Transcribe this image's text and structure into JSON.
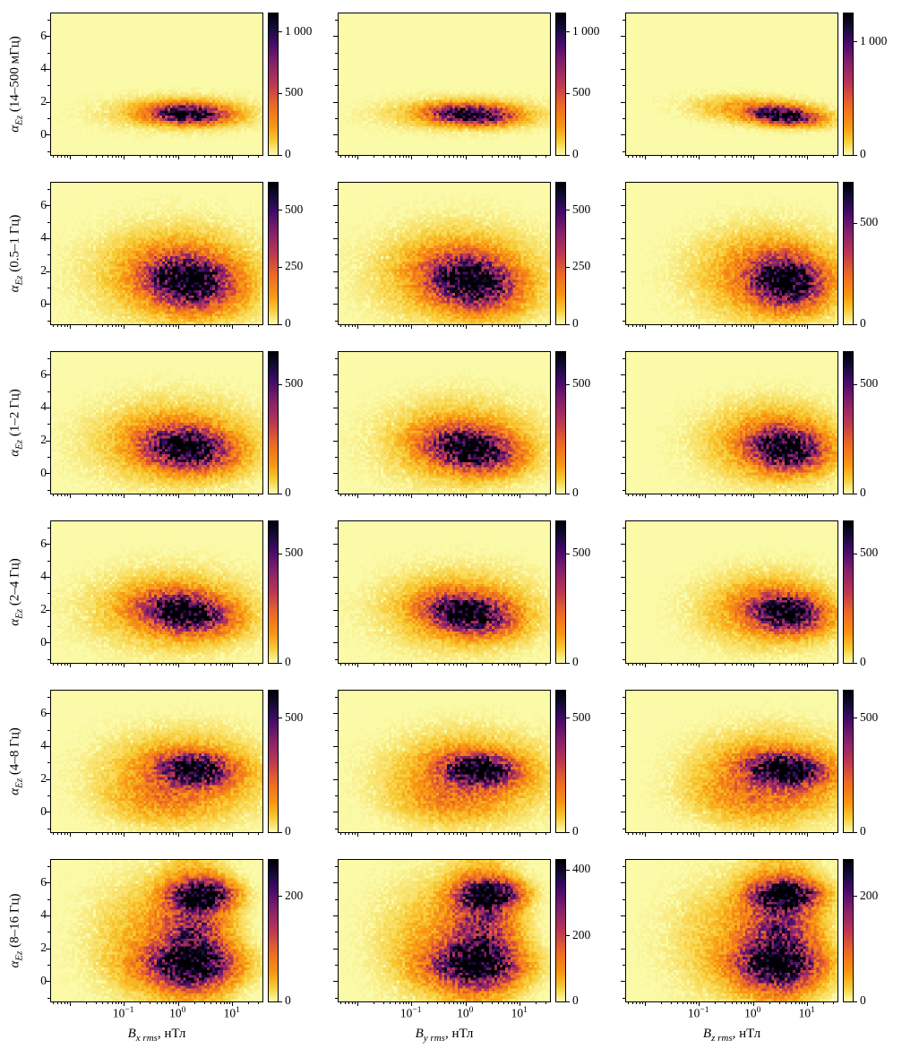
{
  "chart_data": {
    "type": "heatmap",
    "title": "",
    "description": "6x3 grid of 2D occurrence histograms: spectral index alpha_Ez (rows = frequency bands) versus rms magnetic fluctuation amplitude B_rms in nT (columns = Bx, By, Bz components). X axes are logarithmic (nT), y axes linear (spectral index). Colorbars give counts per bin. Each panel's density is summarized by Gaussian components [cx_log10_nT, cy_alpha, sigma_logx, sigma_y, amplitude_fraction_of_vmax, correlation].",
    "x_axis": {
      "scale": "log10",
      "range_log10": [
        -2.35,
        1.55
      ],
      "tick_values_nT": [
        0.1,
        1,
        10
      ]
    },
    "y_axis": {
      "range": [
        -1.2,
        7.4
      ],
      "tick_values": [
        0,
        2,
        4,
        6
      ]
    },
    "colormap": {
      "name": "inferno reversed (yellow low, black high)",
      "background": "#fafaa8",
      "stops": [
        [
          0,
          250,
          250,
          168
        ],
        [
          0.1,
          248,
          203,
          52
        ],
        [
          0.2,
          249,
          152,
          16
        ],
        [
          0.35,
          237,
          105,
          37
        ],
        [
          0.5,
          188,
          55,
          84
        ],
        [
          0.65,
          133,
          33,
          107
        ],
        [
          0.8,
          66,
          10,
          104
        ],
        [
          0.9,
          22,
          11,
          57
        ],
        [
          1,
          0,
          0,
          4
        ]
      ]
    },
    "xticks": [
      {
        "base": "10",
        "exp": "−1",
        "log10": -1
      },
      {
        "base": "10",
        "exp": "0",
        "log10": 0
      },
      {
        "base": "10",
        "exp": "1",
        "log10": 1
      }
    ],
    "yticks": [
      {
        "label": "0",
        "value": 0
      },
      {
        "label": "2",
        "value": 2
      },
      {
        "label": "4",
        "value": 4
      },
      {
        "label": "6",
        "value": 6
      }
    ],
    "columns": [
      {
        "xlabel": {
          "sym": "B",
          "sub": "x rms",
          "unit": ", нТл"
        }
      },
      {
        "xlabel": {
          "sym": "B",
          "sub": "y rms",
          "unit": ", нТл"
        }
      },
      {
        "xlabel": {
          "sym": "B",
          "sub": "z rms",
          "unit": ", нТл"
        }
      }
    ],
    "rows": [
      {
        "ylabel": {
          "sym": "α",
          "sub": "Ez",
          "band": "(14–500 мГц)"
        },
        "panels": [
          {
            "peak_x_nT": 1.5,
            "peak_alpha": 1.3,
            "colorbar": {
              "vmax": 1150,
              "ticks": [
                {
                  "label": "1 000",
                  "value": 1000
                },
                {
                  "label": "500",
                  "value": 500
                },
                {
                  "label": "0",
                  "value": 0
                }
              ]
            },
            "components": [
              [
                0.18,
                1.3,
                0.42,
                0.36,
                1,
                -0.1
              ],
              [
                0.05,
                1.35,
                0.85,
                0.62,
                0.18,
                0
              ]
            ]
          },
          {
            "peak_x_nT": 1.3,
            "peak_alpha": 1.25,
            "colorbar": {
              "vmax": 1150,
              "ticks": [
                {
                  "label": "1 000",
                  "value": 1000
                },
                {
                  "label": "500",
                  "value": 500
                },
                {
                  "label": "0",
                  "value": 0
                }
              ]
            },
            "components": [
              [
                0.1,
                1.25,
                0.45,
                0.36,
                1,
                -0.15
              ],
              [
                -0.05,
                1.3,
                0.9,
                0.6,
                0.18,
                0
              ]
            ]
          },
          {
            "peak_x_nT": 3.5,
            "peak_alpha": 1.2,
            "colorbar": {
              "vmax": 1250,
              "ticks": [
                {
                  "label": "1 000",
                  "value": 1000
                },
                {
                  "label": "0",
                  "value": 0
                }
              ]
            },
            "components": [
              [
                0.55,
                1.2,
                0.38,
                0.34,
                1,
                -0.3
              ],
              [
                0.15,
                1.45,
                0.75,
                0.55,
                0.22,
                -0.3
              ]
            ]
          }
        ]
      },
      {
        "ylabel": {
          "sym": "α",
          "sub": "Ez",
          "band": "(0.5–1 Гц)"
        },
        "panels": [
          {
            "peak_x_nT": 1.6,
            "peak_alpha": 1.4,
            "colorbar": {
              "vmax": 620,
              "ticks": [
                {
                  "label": "500",
                  "value": 500
                },
                {
                  "label": "250",
                  "value": 250
                },
                {
                  "label": "0",
                  "value": 0
                }
              ]
            },
            "components": [
              [
                0.2,
                1.4,
                0.5,
                1.0,
                1,
                -0.15
              ],
              [
                0.0,
                1.8,
                0.95,
                1.8,
                0.22,
                0
              ]
            ]
          },
          {
            "peak_x_nT": 1.3,
            "peak_alpha": 1.4,
            "colorbar": {
              "vmax": 620,
              "ticks": [
                {
                  "label": "500",
                  "value": 500
                },
                {
                  "label": "250",
                  "value": 250
                },
                {
                  "label": "0",
                  "value": 0
                }
              ]
            },
            "components": [
              [
                0.1,
                1.4,
                0.5,
                1.0,
                1,
                -0.2
              ],
              [
                -0.1,
                1.8,
                0.95,
                1.8,
                0.22,
                0
              ]
            ]
          },
          {
            "peak_x_nT": 4.0,
            "peak_alpha": 1.4,
            "colorbar": {
              "vmax": 700,
              "ticks": [
                {
                  "label": "500",
                  "value": 500
                },
                {
                  "label": "0",
                  "value": 0
                }
              ]
            },
            "components": [
              [
                0.6,
                1.4,
                0.42,
                0.95,
                1,
                -0.1
              ],
              [
                0.3,
                1.8,
                0.85,
                1.7,
                0.25,
                0
              ]
            ]
          }
        ]
      },
      {
        "ylabel": {
          "sym": "α",
          "sub": "Ez",
          "band": "(1–2 Гц)"
        },
        "panels": [
          {
            "peak_x_nT": 1.4,
            "peak_alpha": 1.55,
            "colorbar": {
              "vmax": 650,
              "ticks": [
                {
                  "label": "500",
                  "value": 500
                },
                {
                  "label": "0",
                  "value": 0
                }
              ]
            },
            "components": [
              [
                0.15,
                1.55,
                0.5,
                0.8,
                1,
                -0.15
              ],
              [
                -0.05,
                1.9,
                0.95,
                1.6,
                0.2,
                0
              ]
            ]
          },
          {
            "peak_x_nT": 1.25,
            "peak_alpha": 1.5,
            "colorbar": {
              "vmax": 650,
              "ticks": [
                {
                  "label": "500",
                  "value": 500
                },
                {
                  "label": "0",
                  "value": 0
                }
              ]
            },
            "components": [
              [
                0.1,
                1.5,
                0.5,
                0.8,
                1,
                -0.2
              ],
              [
                -0.1,
                1.9,
                0.9,
                1.6,
                0.2,
                0
              ]
            ]
          },
          {
            "peak_x_nT": 4.0,
            "peak_alpha": 1.55,
            "colorbar": {
              "vmax": 650,
              "ticks": [
                {
                  "label": "500",
                  "value": 500
                },
                {
                  "label": "0",
                  "value": 0
                }
              ]
            },
            "components": [
              [
                0.6,
                1.55,
                0.42,
                0.8,
                1,
                -0.1
              ],
              [
                0.35,
                1.9,
                0.8,
                1.5,
                0.22,
                0
              ]
            ]
          }
        ]
      },
      {
        "ylabel": {
          "sym": "α",
          "sub": "Ez",
          "band": "(2–4 Гц)"
        },
        "panels": [
          {
            "peak_x_nT": 1.3,
            "peak_alpha": 1.85,
            "colorbar": {
              "vmax": 650,
              "ticks": [
                {
                  "label": "500",
                  "value": 500
                },
                {
                  "label": "0",
                  "value": 0
                }
              ]
            },
            "components": [
              [
                0.12,
                1.85,
                0.5,
                0.75,
                1,
                -0.2
              ],
              [
                -0.1,
                2.0,
                0.95,
                1.5,
                0.2,
                0
              ]
            ]
          },
          {
            "peak_x_nT": 1.1,
            "peak_alpha": 1.8,
            "colorbar": {
              "vmax": 650,
              "ticks": [
                {
                  "label": "500",
                  "value": 500
                },
                {
                  "label": "0",
                  "value": 0
                }
              ]
            },
            "components": [
              [
                0.05,
                1.8,
                0.48,
                0.75,
                1,
                -0.2
              ],
              [
                -0.1,
                2.0,
                0.9,
                1.5,
                0.2,
                0
              ]
            ]
          },
          {
            "peak_x_nT": 4.0,
            "peak_alpha": 1.85,
            "colorbar": {
              "vmax": 650,
              "ticks": [
                {
                  "label": "500",
                  "value": 500
                },
                {
                  "label": "0",
                  "value": 0
                }
              ]
            },
            "components": [
              [
                0.6,
                1.85,
                0.42,
                0.7,
                1,
                -0.15
              ],
              [
                0.3,
                2.0,
                0.8,
                1.4,
                0.22,
                0
              ]
            ]
          }
        ]
      },
      {
        "ylabel": {
          "sym": "α",
          "sub": "Ez",
          "band": "(4–8 Гц)"
        },
        "panels": [
          {
            "peak_x_nT": 2.0,
            "peak_alpha": 2.6,
            "colorbar": {
              "vmax": 620,
              "ticks": [
                {
                  "label": "500",
                  "value": 500
                },
                {
                  "label": "0",
                  "value": 0
                }
              ]
            },
            "components": [
              [
                0.3,
                2.6,
                0.42,
                0.6,
                1,
                -0.1
              ],
              [
                0.1,
                2.2,
                0.9,
                1.6,
                0.25,
                0
              ],
              [
                -0.3,
                0.8,
                0.6,
                0.9,
                0.12,
                0
              ]
            ]
          },
          {
            "peak_x_nT": 1.8,
            "peak_alpha": 2.6,
            "colorbar": {
              "vmax": 620,
              "ticks": [
                {
                  "label": "500",
                  "value": 500
                },
                {
                  "label": "0",
                  "value": 0
                }
              ]
            },
            "components": [
              [
                0.25,
                2.6,
                0.42,
                0.6,
                1,
                -0.1
              ],
              [
                0.05,
                2.2,
                0.9,
                1.6,
                0.25,
                0
              ],
              [
                -0.3,
                0.8,
                0.6,
                0.9,
                0.12,
                0
              ]
            ]
          },
          {
            "peak_x_nT": 4.0,
            "peak_alpha": 2.6,
            "colorbar": {
              "vmax": 620,
              "ticks": [
                {
                  "label": "500",
                  "value": 500
                },
                {
                  "label": "0",
                  "value": 0
                }
              ]
            },
            "components": [
              [
                0.6,
                2.6,
                0.45,
                0.6,
                1,
                -0.15
              ],
              [
                0.35,
                2.2,
                0.85,
                1.6,
                0.28,
                0
              ],
              [
                0.0,
                1.0,
                0.7,
                1.0,
                0.12,
                0
              ]
            ]
          }
        ]
      },
      {
        "ylabel": {
          "sym": "α",
          "sub": "Ez",
          "band": "(8–16 Гц)"
        },
        "panels": [
          {
            "peak_x_nT": 2.8,
            "peak_alpha": 5.3,
            "colorbar": {
              "vmax": 270,
              "ticks": [
                {
                  "label": "200",
                  "value": 200
                },
                {
                  "label": "0",
                  "value": 0
                }
              ]
            },
            "components": [
              [
                0.45,
                5.3,
                0.35,
                0.55,
                1,
                0
              ],
              [
                0.2,
                1.0,
                0.55,
                0.85,
                0.8,
                0
              ],
              [
                0.3,
                3.0,
                0.4,
                2.3,
                0.55,
                0
              ],
              [
                -0.5,
                2.5,
                0.7,
                2.3,
                0.15,
                0
              ]
            ]
          },
          {
            "peak_x_nT": 2.8,
            "peak_alpha": 5.3,
            "colorbar": {
              "vmax": 430,
              "ticks": [
                {
                  "label": "400",
                  "value": 400
                },
                {
                  "label": "200",
                  "value": 200
                },
                {
                  "label": "0",
                  "value": 0
                }
              ]
            },
            "components": [
              [
                0.45,
                5.3,
                0.35,
                0.55,
                1,
                0
              ],
              [
                0.15,
                1.0,
                0.55,
                0.85,
                0.8,
                0
              ],
              [
                0.3,
                3.0,
                0.4,
                2.3,
                0.55,
                0
              ],
              [
                -0.5,
                2.5,
                0.7,
                2.3,
                0.15,
                0
              ]
            ]
          },
          {
            "peak_x_nT": 4.0,
            "peak_alpha": 5.3,
            "colorbar": {
              "vmax": 270,
              "ticks": [
                {
                  "label": "200",
                  "value": 200
                },
                {
                  "label": "0",
                  "value": 0
                }
              ]
            },
            "components": [
              [
                0.6,
                5.3,
                0.38,
                0.55,
                1,
                0
              ],
              [
                0.45,
                1.0,
                0.5,
                0.85,
                0.8,
                0
              ],
              [
                0.5,
                3.0,
                0.42,
                2.3,
                0.55,
                0
              ],
              [
                -0.2,
                2.5,
                0.8,
                2.3,
                0.15,
                0
              ]
            ]
          }
        ]
      }
    ]
  }
}
